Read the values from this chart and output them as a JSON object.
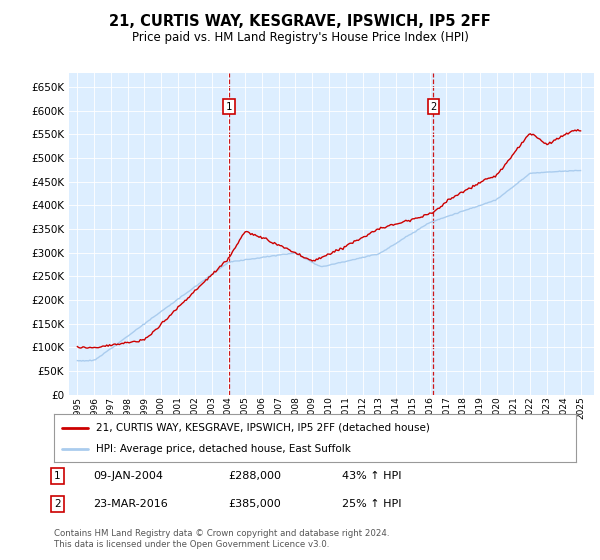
{
  "title": "21, CURTIS WAY, KESGRAVE, IPSWICH, IP5 2FF",
  "subtitle": "Price paid vs. HM Land Registry's House Price Index (HPI)",
  "bg_color": "#ffffff",
  "plot_bg_color": "#ddeeff",
  "line1_color": "#cc0000",
  "line2_color": "#aaccee",
  "vline_color": "#cc0000",
  "sale1_x": 2004.03,
  "sale2_x": 2016.22,
  "sale1_date": "09-JAN-2004",
  "sale1_price": 288000,
  "sale1_pct": "43%",
  "sale2_date": "23-MAR-2016",
  "sale2_price": 385000,
  "sale2_pct": "25%",
  "legend_line1": "21, CURTIS WAY, KESGRAVE, IPSWICH, IP5 2FF (detached house)",
  "legend_line2": "HPI: Average price, detached house, East Suffolk",
  "footer": "Contains HM Land Registry data © Crown copyright and database right 2024.\nThis data is licensed under the Open Government Licence v3.0.",
  "ylim": [
    0,
    680000
  ],
  "yticks": [
    0,
    50000,
    100000,
    150000,
    200000,
    250000,
    300000,
    350000,
    400000,
    450000,
    500000,
    550000,
    600000,
    650000
  ],
  "xlim_left": 1994.5,
  "xlim_right": 2025.8
}
